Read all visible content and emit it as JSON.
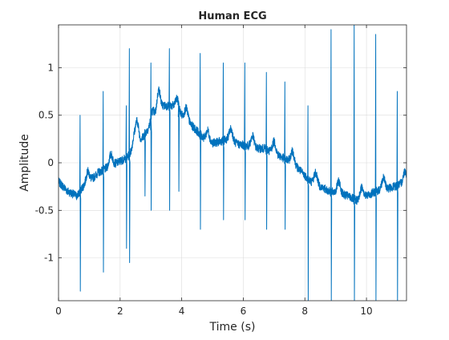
{
  "colors": {
    "line": "#0072bd",
    "grid": "#dcdcdc",
    "axis": "#262626",
    "background": "#ffffff"
  },
  "chart_data": {
    "type": "line",
    "title": "Human ECG",
    "xlabel": "Time (s)",
    "ylabel": "Amplitude",
    "xlim": [
      0,
      11.3
    ],
    "ylim": [
      -1.45,
      1.45
    ],
    "grid": true,
    "legend": "none",
    "xticks": [
      0,
      2,
      4,
      6,
      8,
      10
    ],
    "xtick_labels": [
      "0",
      "2",
      "4",
      "6",
      "8",
      "10"
    ],
    "yticks": [
      -1,
      -0.5,
      0,
      0.5,
      1
    ],
    "ytick_labels": [
      "-1",
      "-0.5",
      "0",
      "0.5",
      "1"
    ],
    "series": [
      {
        "baseline": {
          "x": [
            0,
            0.3,
            0.6,
            0.8,
            1.0,
            1.3,
            1.6,
            1.9,
            2.2,
            2.5,
            2.8,
            3.1,
            3.4,
            3.7,
            4.0,
            4.3,
            4.6,
            4.9,
            5.2,
            5.5,
            5.8,
            6.1,
            6.4,
            6.7,
            7.0,
            7.3,
            7.6,
            7.9,
            8.2,
            8.5,
            8.8,
            9.1,
            9.4,
            9.7,
            10.0,
            10.3,
            10.6,
            10.9,
            11.3
          ],
          "y": [
            -0.2,
            -0.3,
            -0.35,
            -0.25,
            -0.2,
            -0.1,
            -0.05,
            0.0,
            0.05,
            0.15,
            0.3,
            0.45,
            0.6,
            0.6,
            0.5,
            0.4,
            0.3,
            0.2,
            0.22,
            0.25,
            0.2,
            0.18,
            0.15,
            0.15,
            0.1,
            0.05,
            0.0,
            -0.1,
            -0.2,
            -0.25,
            -0.3,
            -0.32,
            -0.35,
            -0.4,
            -0.35,
            -0.3,
            -0.28,
            -0.25,
            -0.2
          ]
        },
        "beats": [
          {
            "t": 0.7,
            "r": 0.5,
            "s": -1.35
          },
          {
            "t": 1.45,
            "r": 0.75,
            "s": -1.15
          },
          {
            "t": 2.2,
            "r": 0.6,
            "s": -0.9
          },
          {
            "t": 2.3,
            "r": 0.4,
            "s": -0.6
          },
          {
            "t": 2.3,
            "r": 1.2,
            "s": -1.05
          },
          {
            "t": 2.8,
            "r": 0.35,
            "s": -0.35
          },
          {
            "t": 3.0,
            "r": 1.05,
            "s": -0.25
          },
          {
            "t": 3.0,
            "r": 0.55,
            "s": -0.5
          },
          {
            "t": 3.6,
            "r": 1.2,
            "s": -0.5
          },
          {
            "t": 3.9,
            "r": 0.65,
            "s": -0.3
          },
          {
            "t": 4.6,
            "r": 1.15,
            "s": -0.7
          },
          {
            "t": 5.35,
            "r": 1.05,
            "s": -0.6
          },
          {
            "t": 6.05,
            "r": 1.05,
            "s": -0.6
          },
          {
            "t": 6.75,
            "r": 0.95,
            "s": -0.7
          },
          {
            "t": 7.35,
            "r": 0.85,
            "s": -0.7
          },
          {
            "t": 8.1,
            "r": 0.6,
            "s": -1.45
          },
          {
            "t": 8.85,
            "r": 1.4,
            "s": -1.45
          },
          {
            "t": 9.6,
            "r": 1.45,
            "s": -1.45
          },
          {
            "t": 10.3,
            "r": 1.35,
            "s": -1.45
          },
          {
            "t": 11.0,
            "r": 0.75,
            "s": -1.45
          }
        ]
      }
    ]
  }
}
